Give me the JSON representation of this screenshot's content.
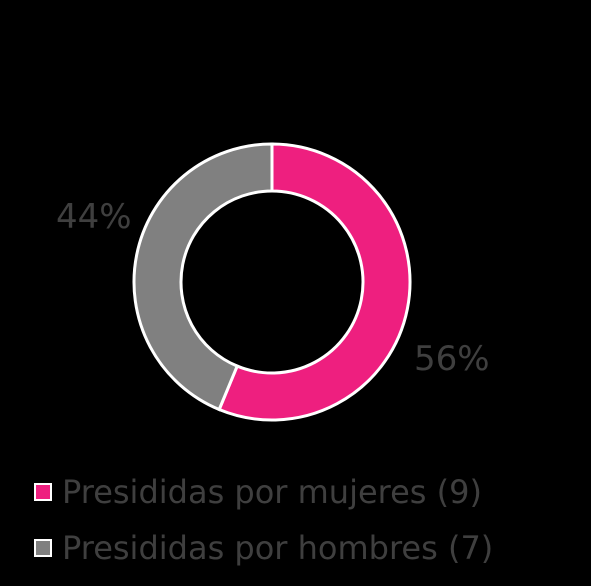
{
  "chart_data": {
    "type": "pie",
    "donut": true,
    "slices": [
      {
        "label": "Presididas por mujeres (9)",
        "value": 9,
        "percent_label": "56%",
        "color": "#ee1f7f"
      },
      {
        "label": "Presididas por hombres (7)",
        "value": 7,
        "percent_label": "44%",
        "color": "#808080"
      }
    ],
    "legend_placement": "bottom-left",
    "background": "#000000"
  }
}
